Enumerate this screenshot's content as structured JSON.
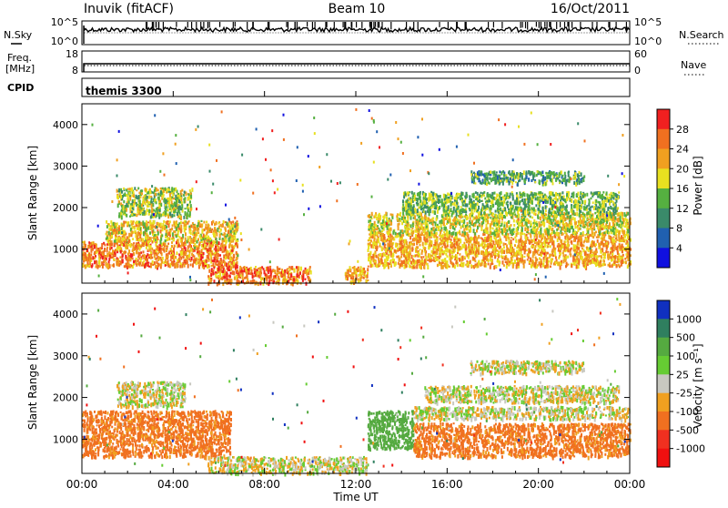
{
  "header": {
    "station": "Inuvik (fitACF)",
    "beam": "Beam 10",
    "date": "16/Oct/2011"
  },
  "panels": {
    "nsky": {
      "left_label": "N.Sky",
      "right_label": "N.Search",
      "left_ticks": [
        "10^5",
        "10^0"
      ],
      "right_ticks": [
        "10^5",
        "10^0"
      ]
    },
    "freq": {
      "left_label_top": "Freq.",
      "left_label_bottom": "[MHz]",
      "right_label": "Nave",
      "left_ticks": [
        "18",
        "8"
      ],
      "right_ticks": [
        "60",
        "0"
      ]
    },
    "cpid": {
      "label": "CPID",
      "value": "themis 3300"
    }
  },
  "power_panel": {
    "ylabel": "Slant Range [km]",
    "yticks": [
      "1000",
      "2000",
      "3000",
      "4000"
    ],
    "colorbar_label": "Power [dB]",
    "colorbar_ticks": [
      "4",
      "8",
      "12",
      "16",
      "20",
      "24",
      "28"
    ],
    "colors": [
      "#1010e0",
      "#2060b0",
      "#3a8a6a",
      "#55b040",
      "#e8e020",
      "#f0a020",
      "#f07020",
      "#f02020"
    ]
  },
  "velocity_panel": {
    "ylabel": "Slant Range [km]",
    "yticks": [
      "1000",
      "2000",
      "3000",
      "4000"
    ],
    "colorbar_label": "Velocity [m s⁻¹]",
    "colorbar_ticks": [
      "1000",
      "500",
      "100",
      "25",
      "-25",
      "-100",
      "-500",
      "-1000"
    ],
    "colors": [
      "#1030c0",
      "#2f7f5f",
      "#55aa40",
      "#66cc33",
      "#c8c8c0",
      "#f0a020",
      "#f07020",
      "#f03020",
      "#f01010"
    ]
  },
  "xaxis": {
    "label": "Time UT",
    "ticks": [
      "00:00",
      "04:00",
      "08:00",
      "12:00",
      "16:00",
      "20:00",
      "00:00"
    ]
  },
  "chart_data": {
    "type": "heatmap",
    "x_range_hours": [
      0,
      24
    ],
    "y_range_km": [
      180,
      4500
    ],
    "plots": [
      {
        "quantity": "Power [dB]",
        "color_range": [
          0,
          32
        ],
        "scatter_regions": [
          {
            "t": [
              0.0,
              6.8
            ],
            "range_km": [
              600,
              1200
            ],
            "typical": 26
          },
          {
            "t": [
              1.0,
              6.8
            ],
            "range_km": [
              1200,
              1700
            ],
            "typical": 22
          },
          {
            "t": [
              1.5,
              4.8
            ],
            "range_km": [
              1800,
              2500
            ],
            "typical": 18
          },
          {
            "t": [
              5.5,
              10.0
            ],
            "range_km": [
              200,
              600
            ],
            "typical": 27
          },
          {
            "t": [
              11.5,
              12.5
            ],
            "range_km": [
              200,
              600
            ],
            "typical": 24
          },
          {
            "t": [
              12.5,
              24.0
            ],
            "range_km": [
              600,
              1400
            ],
            "typical": 24
          },
          {
            "t": [
              12.5,
              24.0
            ],
            "range_km": [
              1400,
              1900
            ],
            "typical": 20
          },
          {
            "t": [
              14.0,
              23.5
            ],
            "range_km": [
              1900,
              2400
            ],
            "typical": 16
          },
          {
            "t": [
              17.0,
              22.0
            ],
            "range_km": [
              2600,
              2900
            ],
            "typical": 14
          }
        ]
      },
      {
        "quantity": "Velocity [m s⁻¹]",
        "scatter_regions": [
          {
            "t": [
              0.0,
              6.5
            ],
            "range_km": [
              600,
              1700
            ],
            "typical": -150
          },
          {
            "t": [
              1.5,
              4.5
            ],
            "range_km": [
              1800,
              2400
            ],
            "typical": 0
          },
          {
            "t": [
              5.5,
              12.5
            ],
            "range_km": [
              200,
              600
            ],
            "typical": 0
          },
          {
            "t": [
              12.5,
              14.5
            ],
            "range_km": [
              800,
              1700
            ],
            "typical": 400
          },
          {
            "t": [
              14.5,
              24.0
            ],
            "range_km": [
              600,
              1400
            ],
            "typical": -150
          },
          {
            "t": [
              14.5,
              24.0
            ],
            "range_km": [
              1500,
              1800
            ],
            "typical": 0
          },
          {
            "t": [
              15.0,
              23.5
            ],
            "range_km": [
              1900,
              2300
            ],
            "typical": 0
          },
          {
            "t": [
              17.0,
              22.0
            ],
            "range_km": [
              2600,
              2900
            ],
            "typical": 0
          }
        ]
      }
    ]
  }
}
